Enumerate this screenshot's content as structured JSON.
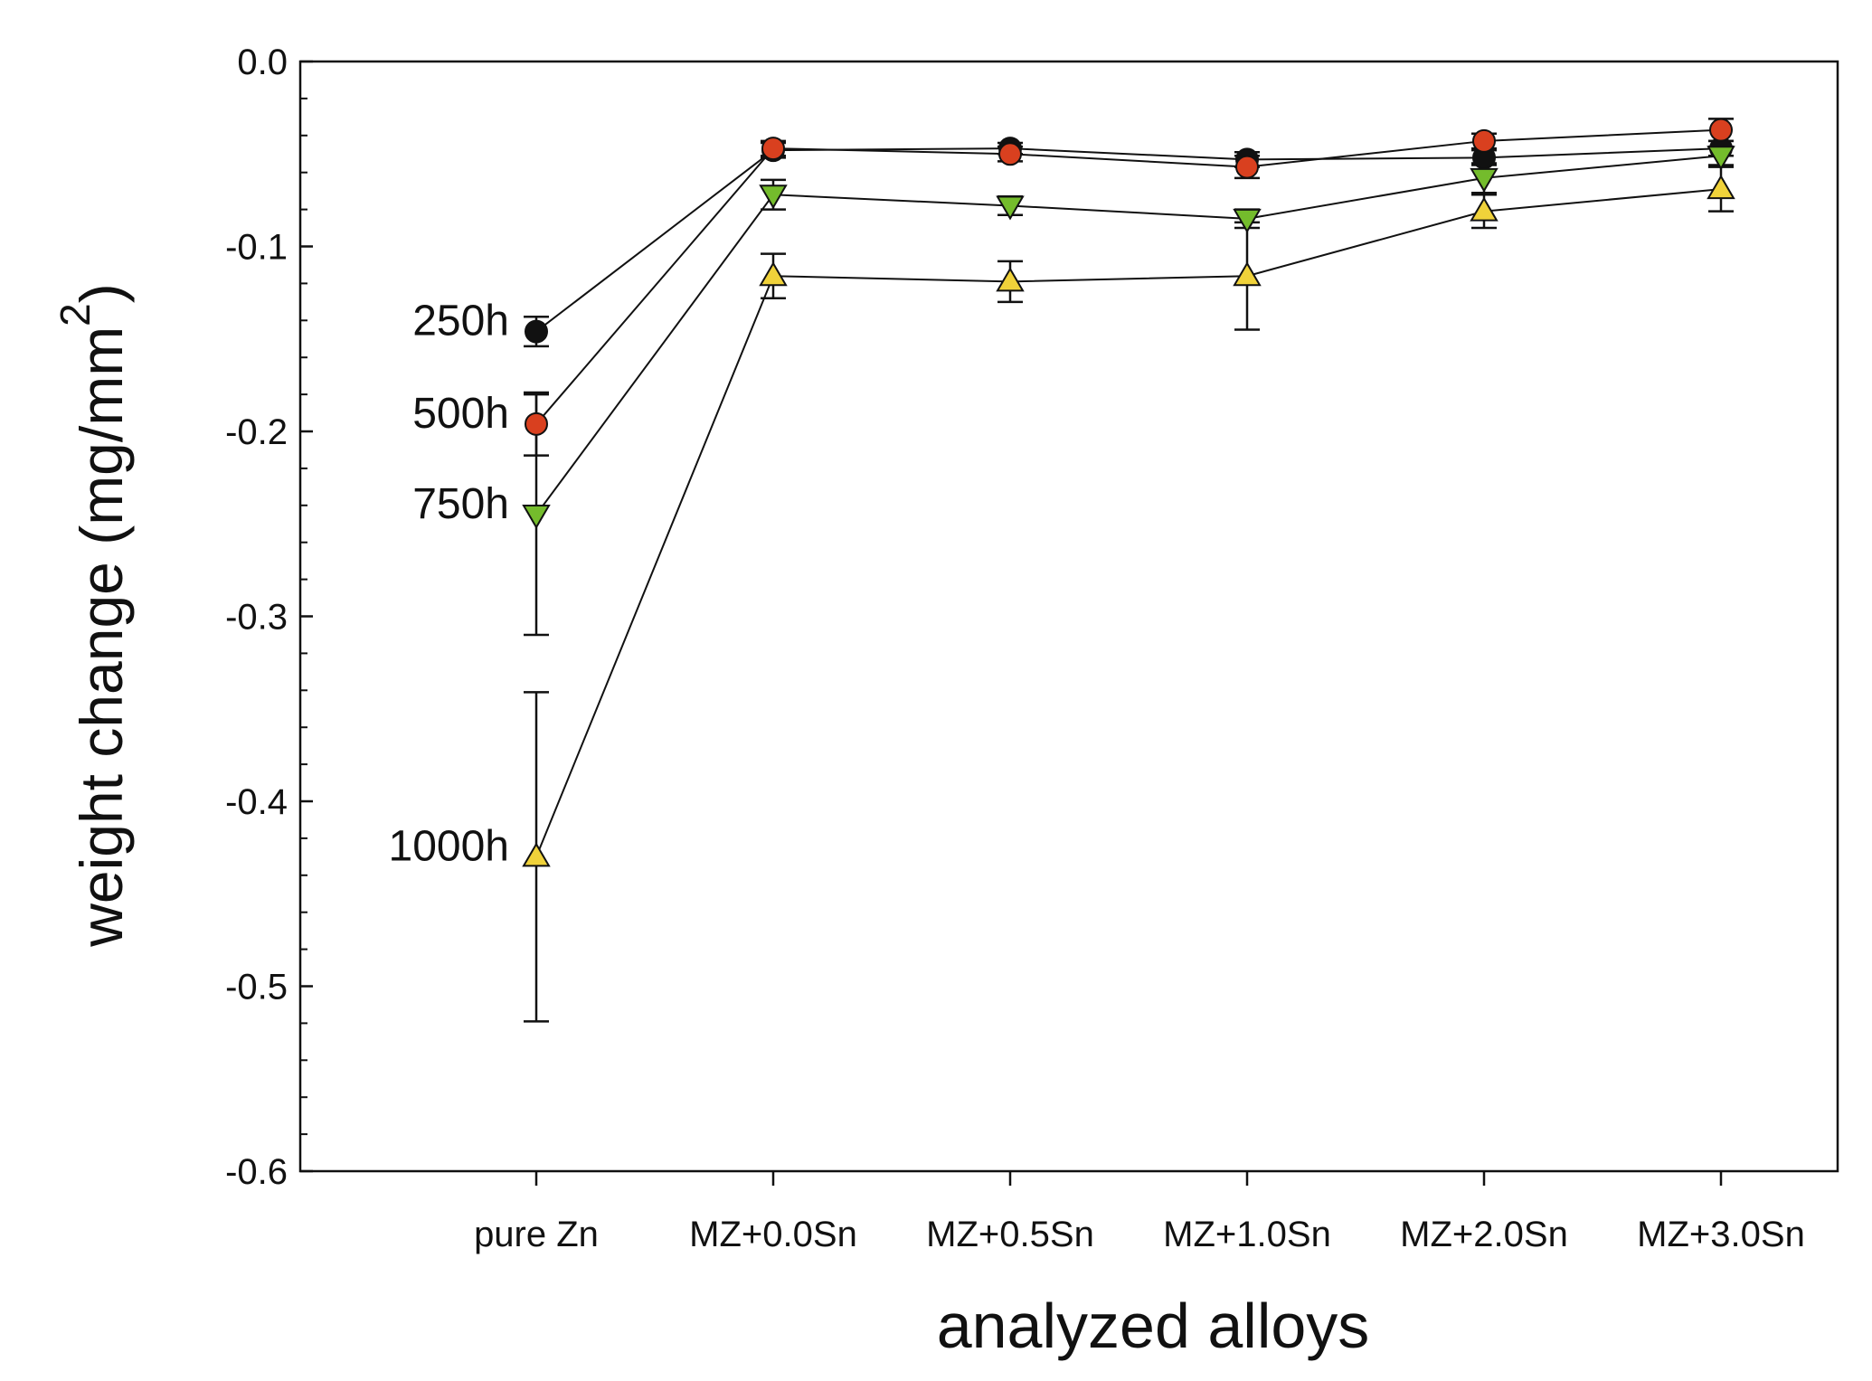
{
  "chart_data": {
    "type": "line",
    "title": "",
    "xlabel": "analyzed alloys",
    "ylabel": "weight change (mg/mm",
    "ylabel_superscript": "2",
    "ylabel_close": ")",
    "categories": [
      "pure Zn",
      "MZ+0.0Sn",
      "MZ+0.5Sn",
      "MZ+1.0Sn",
      "MZ+2.0Sn",
      "MZ+3.0Sn"
    ],
    "ylim": [
      -0.6,
      0.0
    ],
    "yticks": [
      0.0,
      -0.1,
      -0.2,
      -0.3,
      -0.4,
      -0.5,
      -0.6
    ],
    "ytick_labels": [
      "0.0",
      "-0.1",
      "-0.2",
      "-0.3",
      "-0.4",
      "-0.5",
      "-0.6"
    ],
    "grid": false,
    "legend": "inline labels left of first point",
    "series": [
      {
        "name": "250h",
        "marker": "circle",
        "color": "#111111",
        "values": [
          -0.146,
          -0.048,
          -0.047,
          -0.053,
          -0.052,
          -0.047
        ],
        "errors": [
          0.008,
          0.004,
          0.003,
          0.004,
          0.004,
          0.004
        ]
      },
      {
        "name": "500h",
        "marker": "circle",
        "color": "#d9401f",
        "values": [
          -0.196,
          -0.047,
          -0.05,
          -0.057,
          -0.043,
          -0.037
        ],
        "errors": [
          0.017,
          0.004,
          0.004,
          0.006,
          0.004,
          0.006
        ]
      },
      {
        "name": "750h",
        "marker": "triangle-down",
        "color": "#74bc2c",
        "values": [
          -0.245,
          -0.072,
          -0.078,
          -0.085,
          -0.063,
          -0.051
        ],
        "errors": [
          0.065,
          0.008,
          0.005,
          0.005,
          0.008,
          0.005
        ]
      },
      {
        "name": "1000h",
        "marker": "triangle-up",
        "color": "#f0d23a",
        "values": [
          -0.43,
          -0.116,
          -0.119,
          -0.116,
          -0.081,
          -0.069
        ],
        "errors": [
          0.089,
          0.012,
          0.011,
          0.029,
          0.009,
          0.012
        ]
      }
    ]
  }
}
